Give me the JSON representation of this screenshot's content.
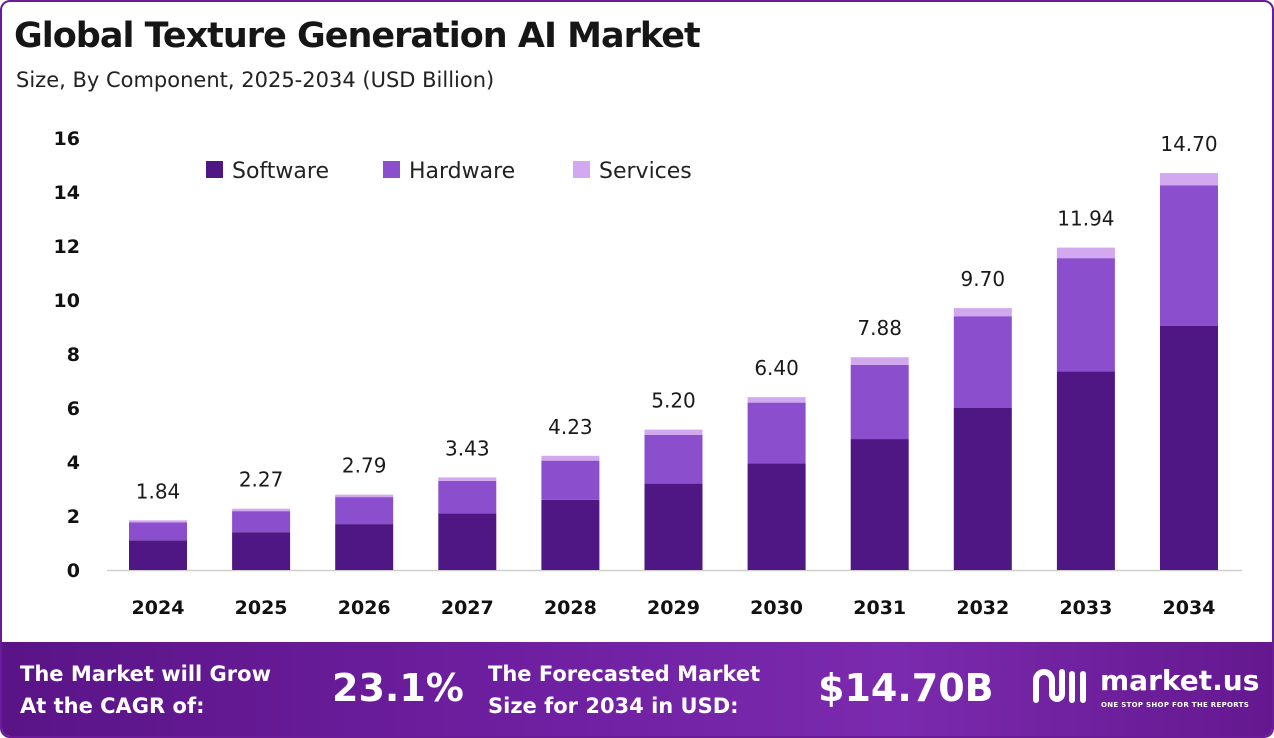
{
  "header": {
    "title": "Global Texture Generation AI Market",
    "subtitle": "Size, By Component, 2025-2034 (USD Billion)"
  },
  "colors": {
    "software": "#4f1783",
    "hardware": "#8b4fce",
    "services": "#d2a8ef",
    "banner": "#6e1fa0"
  },
  "chart_data": {
    "type": "bar",
    "stacked": true,
    "categories": [
      "2024",
      "2025",
      "2026",
      "2027",
      "2028",
      "2029",
      "2030",
      "2031",
      "2032",
      "2033",
      "2034"
    ],
    "series": [
      {
        "name": "Software",
        "values": [
          1.1,
          1.4,
          1.7,
          2.1,
          2.6,
          3.2,
          3.95,
          4.85,
          6.0,
          7.35,
          9.05
        ]
      },
      {
        "name": "Hardware",
        "values": [
          0.66,
          0.78,
          1.0,
          1.2,
          1.45,
          1.8,
          2.25,
          2.75,
          3.4,
          4.2,
          5.2
        ]
      },
      {
        "name": "Services",
        "values": [
          0.08,
          0.09,
          0.09,
          0.13,
          0.18,
          0.2,
          0.2,
          0.28,
          0.3,
          0.39,
          0.45
        ]
      }
    ],
    "totals": [
      "1.84",
      "2.27",
      "2.79",
      "3.43",
      "4.23",
      "5.20",
      "6.40",
      "7.88",
      "9.70",
      "11.94",
      "14.70"
    ],
    "yticks": [
      "0",
      "2",
      "4",
      "6",
      "8",
      "10",
      "12",
      "14",
      "16"
    ],
    "ylim": [
      0,
      16
    ],
    "grid": false,
    "legend_position": "top-left"
  },
  "banner": {
    "cagr_label_line1": "The Market will Grow",
    "cagr_label_line2": "At the CAGR of:",
    "cagr_value": "23.1%",
    "forecast_label_line1": "The Forecasted Market",
    "forecast_label_line2": "Size for 2034 in USD:",
    "forecast_value": "$14.70B"
  },
  "brand": {
    "name": "market.us",
    "tagline": "ONE STOP SHOP FOR THE REPORTS",
    "icon": "market-us-logo-icon"
  }
}
